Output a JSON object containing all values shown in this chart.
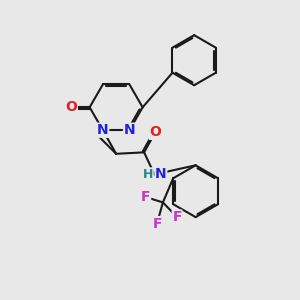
{
  "background_color": "#e8e8e8",
  "bond_color": "#1a1a1a",
  "bond_width": 1.5,
  "atom_colors": {
    "N": "#2222dd",
    "O": "#dd2222",
    "F": "#cc33cc",
    "H": "#228888",
    "C": "#1a1a1a"
  }
}
